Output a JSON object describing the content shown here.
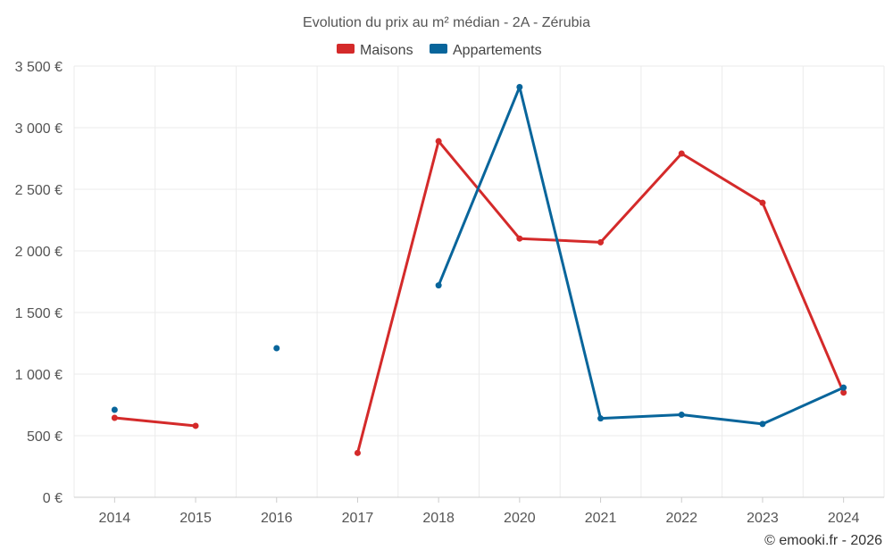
{
  "chart_data": {
    "type": "line",
    "title": "Evolution du prix au m² médian - 2A - Zérubia",
    "categories": [
      "2014",
      "2015",
      "2016",
      "2017",
      "2018",
      "2020",
      "2021",
      "2022",
      "2023",
      "2024"
    ],
    "series": [
      {
        "name": "Maisons",
        "color": "#d42a2a",
        "values": [
          645,
          580,
          null,
          360,
          2890,
          2100,
          2070,
          2790,
          2390,
          850
        ]
      },
      {
        "name": "Appartements",
        "color": "#08659b",
        "values": [
          710,
          null,
          1210,
          null,
          1720,
          3330,
          640,
          670,
          595,
          890
        ]
      }
    ],
    "yticks": [
      "0 €",
      "500 €",
      "1 000 €",
      "1 500 €",
      "2 000 €",
      "2 500 €",
      "3 000 €",
      "3 500 €"
    ],
    "ylim": [
      0,
      3500
    ],
    "grid": true,
    "legend_position": "top-center"
  },
  "credit": "© emooki.fr - 2026"
}
